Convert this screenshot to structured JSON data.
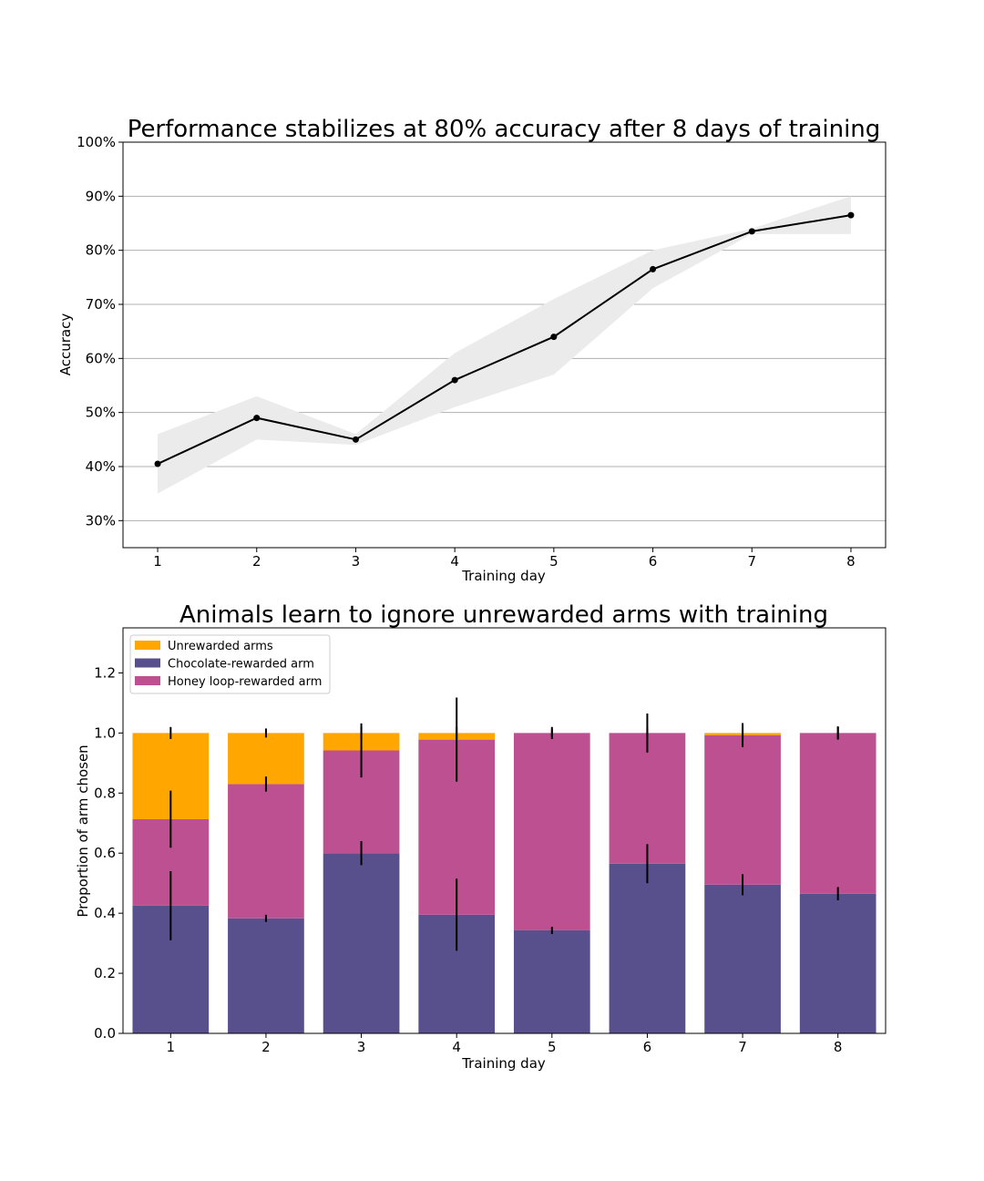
{
  "chart_data": [
    {
      "type": "line",
      "title": "Performance stabilizes at 80% accuracy after 8 days of training",
      "xlabel": "Training day",
      "ylabel": "Accuracy",
      "x": [
        1,
        2,
        3,
        4,
        5,
        6,
        7,
        8
      ],
      "x_tick_labels": [
        "1",
        "2",
        "3",
        "4",
        "5",
        "6",
        "7",
        "8"
      ],
      "y_tick_labels": [
        "30%",
        "40%",
        "50%",
        "60%",
        "70%",
        "80%",
        "90%",
        "100%"
      ],
      "y_ticks": [
        0.3,
        0.4,
        0.5,
        0.6,
        0.7,
        0.8,
        0.9,
        1.0
      ],
      "xlim": [
        0.65,
        8.35
      ],
      "ylim": [
        0.25,
        1.0
      ],
      "grid": "horizontal",
      "series": [
        {
          "values": [
            0.405,
            0.49,
            0.45,
            0.56,
            0.64,
            0.765,
            0.835,
            0.865
          ],
          "ci_lower": [
            0.35,
            0.45,
            0.44,
            0.51,
            0.57,
            0.73,
            0.83,
            0.83
          ],
          "ci_upper": [
            0.46,
            0.53,
            0.46,
            0.61,
            0.71,
            0.8,
            0.84,
            0.9
          ],
          "color": "#000000",
          "band_color": "#ebebeb"
        }
      ]
    },
    {
      "type": "bar",
      "stacked": true,
      "title": "Animals learn to ignore unrewarded arms with training",
      "xlabel": "Training day",
      "ylabel": "Proportion of arm chosen",
      "categories": [
        "1",
        "2",
        "3",
        "4",
        "5",
        "6",
        "7",
        "8"
      ],
      "y_tick_labels": [
        "0.0",
        "0.2",
        "0.4",
        "0.6",
        "0.8",
        "1.0",
        "1.2"
      ],
      "y_ticks": [
        0.0,
        0.2,
        0.4,
        0.6,
        0.8,
        1.0,
        1.2
      ],
      "ylim": [
        0.0,
        1.35
      ],
      "legend_position": "upper-left",
      "series": [
        {
          "name": "Chocolate-rewarded arm",
          "color": "#58508d",
          "values": [
            0.425,
            0.383,
            0.6,
            0.395,
            0.343,
            0.565,
            0.495,
            0.465
          ],
          "err": [
            0.115,
            0.012,
            0.04,
            0.12,
            0.012,
            0.065,
            0.035,
            0.022
          ]
        },
        {
          "name": "Honey loop-rewarded arm",
          "color": "#bc5090",
          "values": [
            0.288,
            0.447,
            0.342,
            0.583,
            0.657,
            0.435,
            0.498,
            0.535
          ],
          "err": [
            0.095,
            0.025,
            0.09,
            0.14,
            0.012,
            0.065,
            0.04,
            0.022
          ]
        },
        {
          "name": "Unrewarded arms",
          "color": "#ffa600",
          "values": [
            0.287,
            0.17,
            0.058,
            0.022,
            0.0,
            0.0,
            0.007,
            0.0
          ],
          "err": [
            0.02,
            0.015,
            0.0,
            0.0,
            0.0,
            0.0,
            0.0,
            0.0
          ]
        }
      ],
      "legend_order": [
        "Unrewarded arms",
        "Chocolate-rewarded arm",
        "Honey loop-rewarded arm"
      ]
    }
  ]
}
